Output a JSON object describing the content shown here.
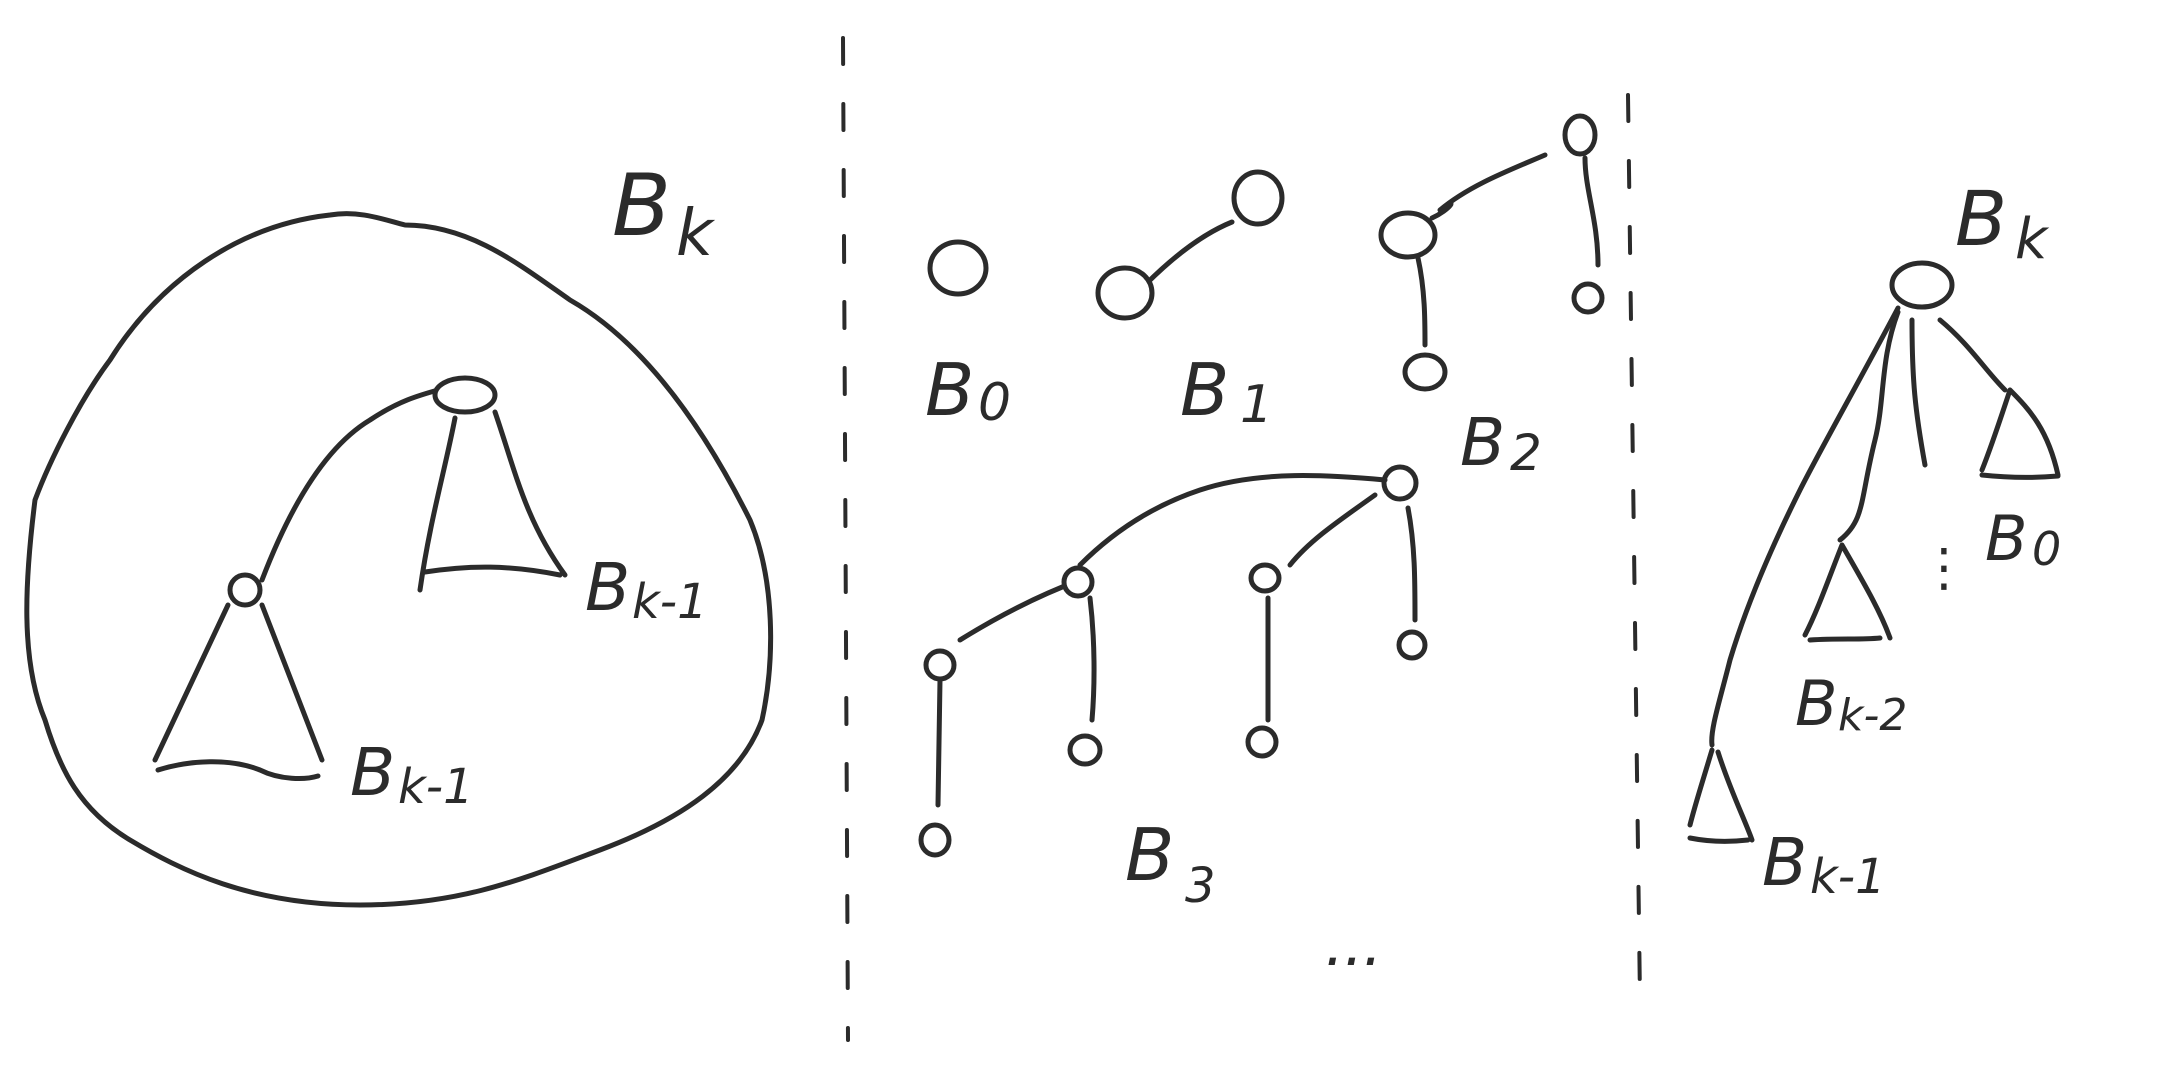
{
  "panels": {
    "definition": {
      "title": "B",
      "title_sub": "k",
      "left_subtree": {
        "label": "B",
        "sub": "k-1"
      },
      "right_subtree": {
        "label": "B",
        "sub": "k-1"
      }
    },
    "examples": {
      "b0": {
        "label": "B",
        "sub": "0"
      },
      "b1": {
        "label": "B",
        "sub": "1"
      },
      "b2": {
        "label": "B",
        "sub": "2"
      },
      "b3": {
        "label": "B",
        "sub": "3"
      },
      "more": "..."
    },
    "structure": {
      "title": "B",
      "title_sub": "k",
      "child_b0": {
        "label": "B",
        "sub": "0"
      },
      "child_bk2": {
        "label": "B",
        "sub": "k-2"
      },
      "child_bk1": {
        "label": "B",
        "sub": "k-1"
      },
      "vdots": "⋮"
    }
  }
}
